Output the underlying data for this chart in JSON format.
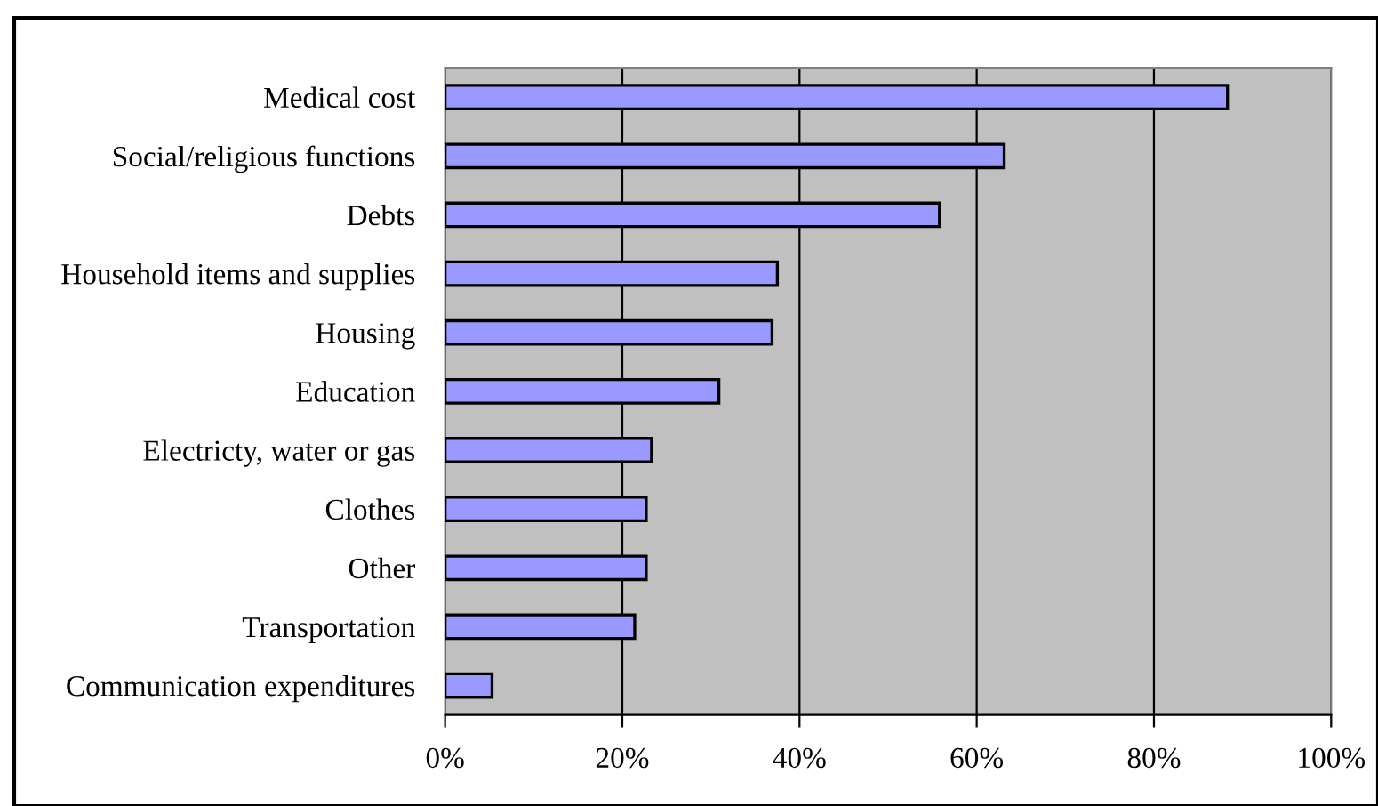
{
  "chart_data": {
    "type": "bar",
    "orientation": "horizontal",
    "categories": [
      "Medical cost",
      "Social/religious functions",
      "Debts",
      "Household items and supplies",
      "Housing",
      "Education",
      "Electricty, water or gas",
      "Clothes",
      "Other",
      "Transportation",
      "Communication expenditures"
    ],
    "values": [
      88.3,
      63.1,
      55.8,
      37.5,
      36.9,
      30.9,
      23.3,
      22.7,
      22.7,
      21.4,
      5.3
    ],
    "color": "#9999ff",
    "xlim": [
      0,
      100
    ],
    "xticks": [
      {
        "value": 0,
        "label": "0%"
      },
      {
        "value": 20,
        "label": "20%"
      },
      {
        "value": 40,
        "label": "40%"
      },
      {
        "value": 60,
        "label": "60%"
      },
      {
        "value": 80,
        "label": "80%"
      },
      {
        "value": 100,
        "label": "100%"
      }
    ],
    "grid": "x"
  }
}
